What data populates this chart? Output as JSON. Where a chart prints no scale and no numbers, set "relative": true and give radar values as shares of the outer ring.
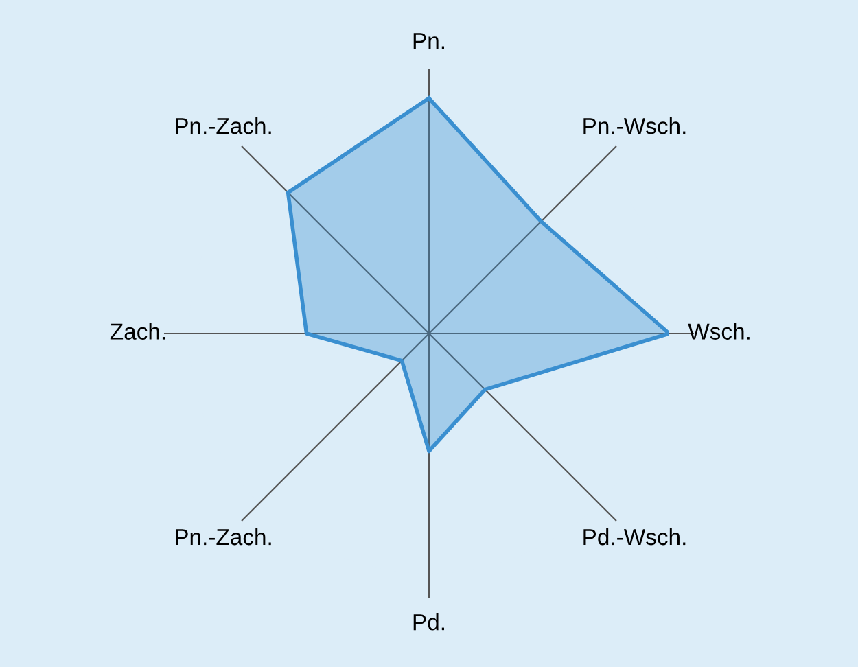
{
  "chart_data": {
    "type": "radar",
    "relative": true,
    "categories": [
      "Pn.",
      "Pn.-Wsch.",
      "Wsch.",
      "Pd.-Wsch.",
      "Pd.",
      "Pn.-Zach.",
      "Zach.",
      "Pn.-Zach."
    ],
    "series": [
      {
        "color": "#3a8fd0",
        "values": [
          0.98,
          0.66,
          1,
          0.33,
          0.49,
          0.16,
          0.51,
          0.83
        ]
      }
    ],
    "grid": true,
    "legend": false
  }
}
